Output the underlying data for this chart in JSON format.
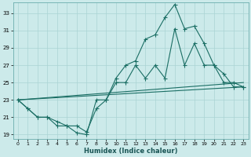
{
  "xlabel": "Humidex (Indice chaleur)",
  "bg_color": "#cceaea",
  "line_color": "#1a6e64",
  "grid_color": "#aad4d4",
  "xlim": [
    -0.5,
    23.5
  ],
  "ylim": [
    18.5,
    34.2
  ],
  "yticks": [
    19,
    21,
    23,
    25,
    27,
    29,
    31,
    33
  ],
  "xticks": [
    0,
    1,
    2,
    3,
    4,
    5,
    6,
    7,
    8,
    9,
    10,
    11,
    12,
    13,
    14,
    15,
    16,
    17,
    18,
    19,
    20,
    21,
    22,
    23
  ],
  "line1_x": [
    0,
    1,
    2,
    3,
    4,
    5,
    6,
    7,
    8,
    9,
    10,
    11,
    12,
    13,
    14,
    15,
    16,
    17,
    18,
    19,
    20,
    21,
    22,
    23
  ],
  "line1_y": [
    23,
    22,
    21,
    21,
    20,
    20,
    19.2,
    19,
    23,
    23,
    25.5,
    27,
    27.5,
    30,
    30.5,
    32.5,
    34,
    31.2,
    31.5,
    29.5,
    27,
    26,
    24.5,
    24.5
  ],
  "line2_x": [
    0,
    1,
    2,
    3,
    4,
    5,
    6,
    7,
    8,
    9,
    10,
    11,
    12,
    13,
    14,
    15,
    16,
    17,
    18,
    19,
    20,
    21,
    22,
    23
  ],
  "line2_y": [
    23,
    22,
    21,
    21,
    20.5,
    20,
    20,
    19.3,
    22,
    23,
    25,
    25,
    27,
    25.5,
    27,
    25.5,
    31.2,
    27,
    29.5,
    27,
    27,
    25,
    25,
    24.5
  ],
  "line3_x": [
    0,
    23
  ],
  "line3_y": [
    23,
    25
  ],
  "line4_x": [
    0,
    23
  ],
  "line4_y": [
    23,
    24.5
  ]
}
